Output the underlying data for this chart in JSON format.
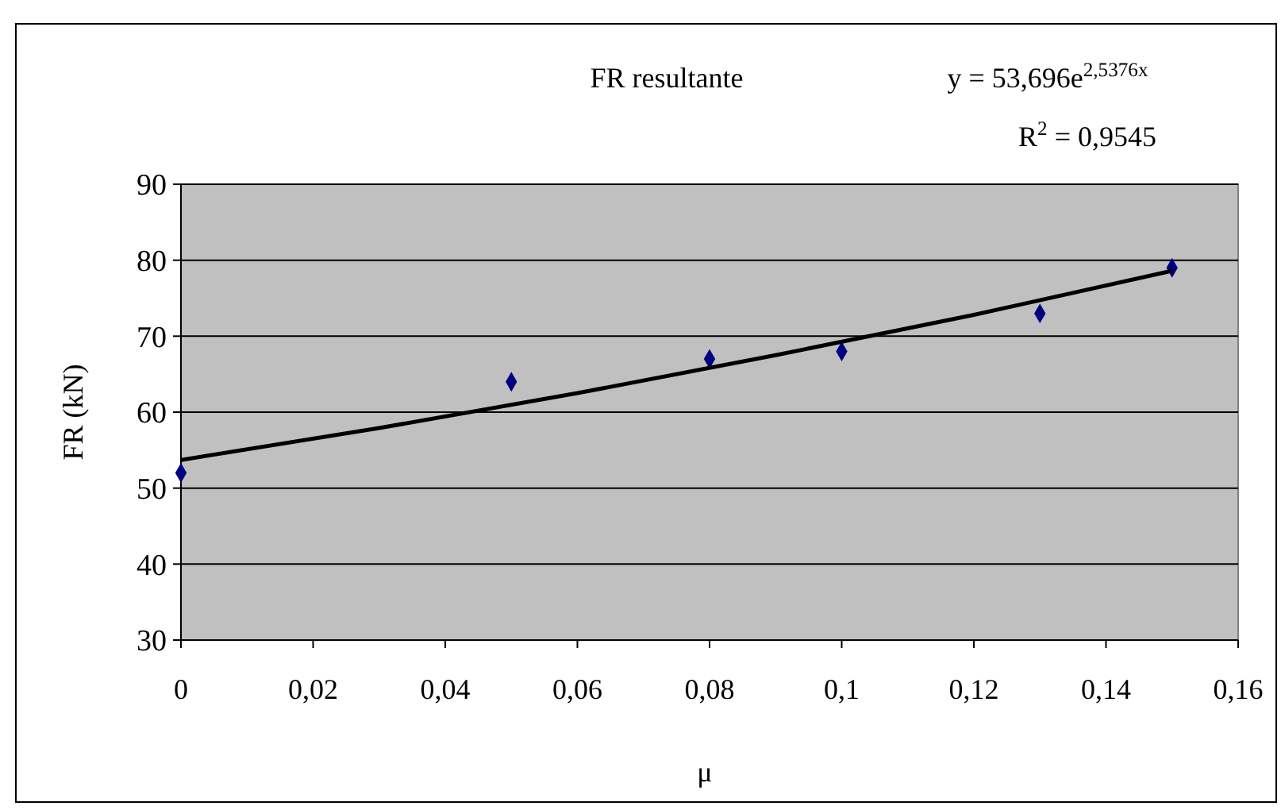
{
  "chart_data": {
    "type": "scatter",
    "title": "FR resultante",
    "xlabel": "μ",
    "ylabel": "FR (kN)",
    "annotations": [
      "y = 53,696e$^{2,5376x}$",
      "R$^{2}$ = 0,9545"
    ],
    "series": [
      {
        "color": "#000080",
        "marker": "diamond",
        "x": [
          0,
          0.05,
          0.08,
          0.1,
          0.13,
          0.15
        ],
        "values": [
          52,
          64,
          67,
          68,
          73,
          79
        ]
      },
      {
        "type": "line",
        "color": "#000000",
        "marker": "none",
        "line_style": "solid",
        "x": [
          0,
          0.03,
          0.06,
          0.09,
          0.12,
          0.15
        ],
        "values": [
          53.7,
          57.9,
          62.5,
          67.5,
          72.8,
          78.6
        ]
      }
    ],
    "xlim": [
      0,
      0.16
    ],
    "xticks": [
      0,
      {
        "value": 0.02,
        "label": "0,02"
      },
      {
        "value": 0.04,
        "label": "0,04"
      },
      {
        "value": 0.06,
        "label": "0,06"
      },
      {
        "value": 0.08,
        "label": "0,08"
      },
      {
        "value": 0.1,
        "label": "0,1"
      },
      {
        "value": 0.12,
        "label": "0,12"
      },
      {
        "value": 0.14,
        "label": "0,14"
      },
      {
        "value": 0.16,
        "label": "0,16"
      }
    ],
    "ylim": [
      30,
      90
    ],
    "yticks": [
      30,
      40,
      50,
      60,
      70,
      80,
      90
    ],
    "grid": "y"
  }
}
